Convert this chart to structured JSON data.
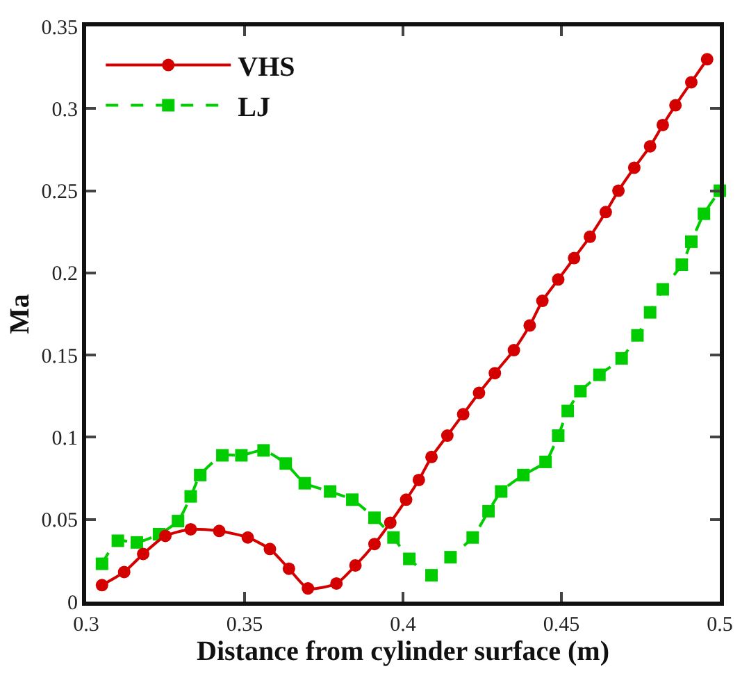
{
  "chart_data": {
    "type": "line",
    "xlabel": "Distance from cylinder surface (m)",
    "ylabel": "Ma",
    "xlim": [
      0.3,
      0.5
    ],
    "xticks": [
      0.3,
      0.35,
      0.4,
      0.45,
      0.5
    ],
    "ylim": [
      0,
      0.35
    ],
    "yticks": [
      0,
      0.05,
      0.1,
      0.15,
      0.2,
      0.25,
      0.3,
      0.35
    ],
    "grid": false,
    "legend": "top left",
    "series": [
      {
        "name": "VHS",
        "color": "#d40000",
        "marker": "circle",
        "line_style": "solid",
        "x": [
          0.305,
          0.312,
          0.318,
          0.325,
          0.333,
          0.342,
          0.351,
          0.358,
          0.364,
          0.37,
          0.379,
          0.385,
          0.391,
          0.396,
          0.401,
          0.405,
          0.409,
          0.414,
          0.419,
          0.424,
          0.429,
          0.435,
          0.44,
          0.444,
          0.449,
          0.454,
          0.459,
          0.464,
          0.468,
          0.473,
          0.478,
          0.482,
          0.486,
          0.491,
          0.496
        ],
        "values": [
          0.01,
          0.018,
          0.029,
          0.04,
          0.044,
          0.043,
          0.039,
          0.032,
          0.02,
          0.008,
          0.011,
          0.022,
          0.035,
          0.048,
          0.062,
          0.074,
          0.088,
          0.101,
          0.114,
          0.127,
          0.139,
          0.153,
          0.168,
          0.183,
          0.196,
          0.209,
          0.222,
          0.237,
          0.25,
          0.264,
          0.277,
          0.29,
          0.302,
          0.316,
          0.33
        ]
      },
      {
        "name": "LJ",
        "color": "#00cc00",
        "marker": "square",
        "line_style": "dashed",
        "x": [
          0.305,
          0.31,
          0.316,
          0.323,
          0.329,
          0.333,
          0.336,
          0.343,
          0.349,
          0.356,
          0.363,
          0.369,
          0.377,
          0.384,
          0.391,
          0.397,
          0.402,
          0.409,
          0.415,
          0.422,
          0.427,
          0.431,
          0.438,
          0.445,
          0.449,
          0.452,
          0.456,
          0.462,
          0.469,
          0.474,
          0.478,
          0.482,
          0.488,
          0.491,
          0.495,
          0.5
        ],
        "values": [
          0.023,
          0.037,
          0.036,
          0.041,
          0.049,
          0.064,
          0.077,
          0.089,
          0.089,
          0.092,
          0.084,
          0.072,
          0.067,
          0.062,
          0.051,
          0.039,
          0.026,
          0.016,
          0.027,
          0.039,
          0.055,
          0.067,
          0.077,
          0.085,
          0.101,
          0.116,
          0.128,
          0.138,
          0.148,
          0.162,
          0.176,
          0.19,
          0.205,
          0.219,
          0.236,
          0.25
        ]
      }
    ]
  }
}
